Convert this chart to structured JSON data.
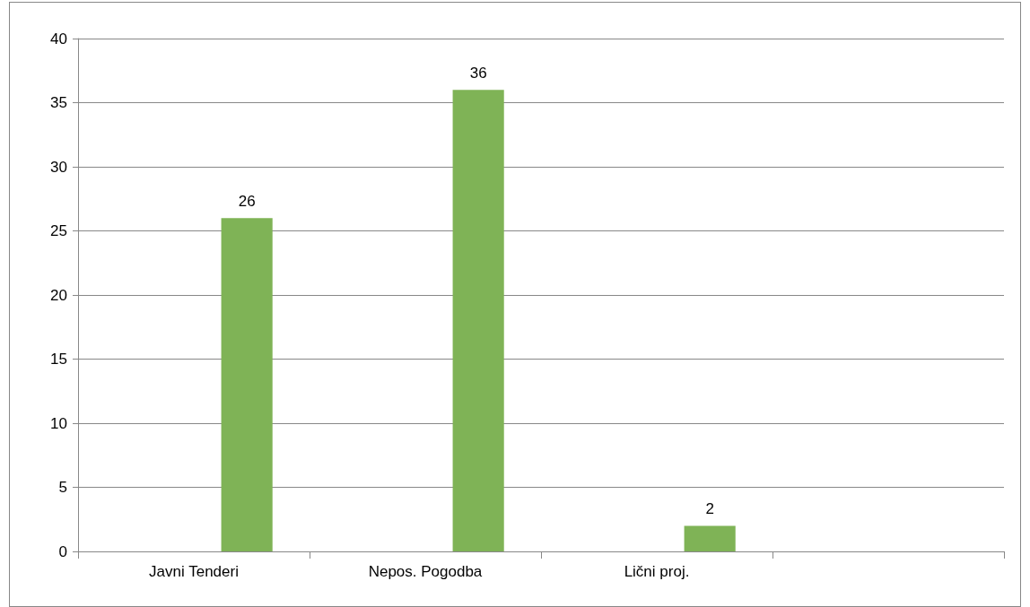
{
  "chart_data": {
    "type": "bar",
    "categories": [
      "Javni Tenderi",
      "Nepos. Pogodba",
      "Lični proj.",
      null
    ],
    "series": [
      {
        "values": [
          null,
          null,
          null,
          null
        ]
      },
      {
        "color": "#7fb356",
        "values": [
          26,
          36,
          2,
          null
        ]
      }
    ],
    "ylim": [
      0,
      40
    ],
    "yticks": [
      0,
      5,
      10,
      15,
      20,
      25,
      30,
      35,
      40
    ],
    "grid": "y",
    "data_labels": true
  }
}
